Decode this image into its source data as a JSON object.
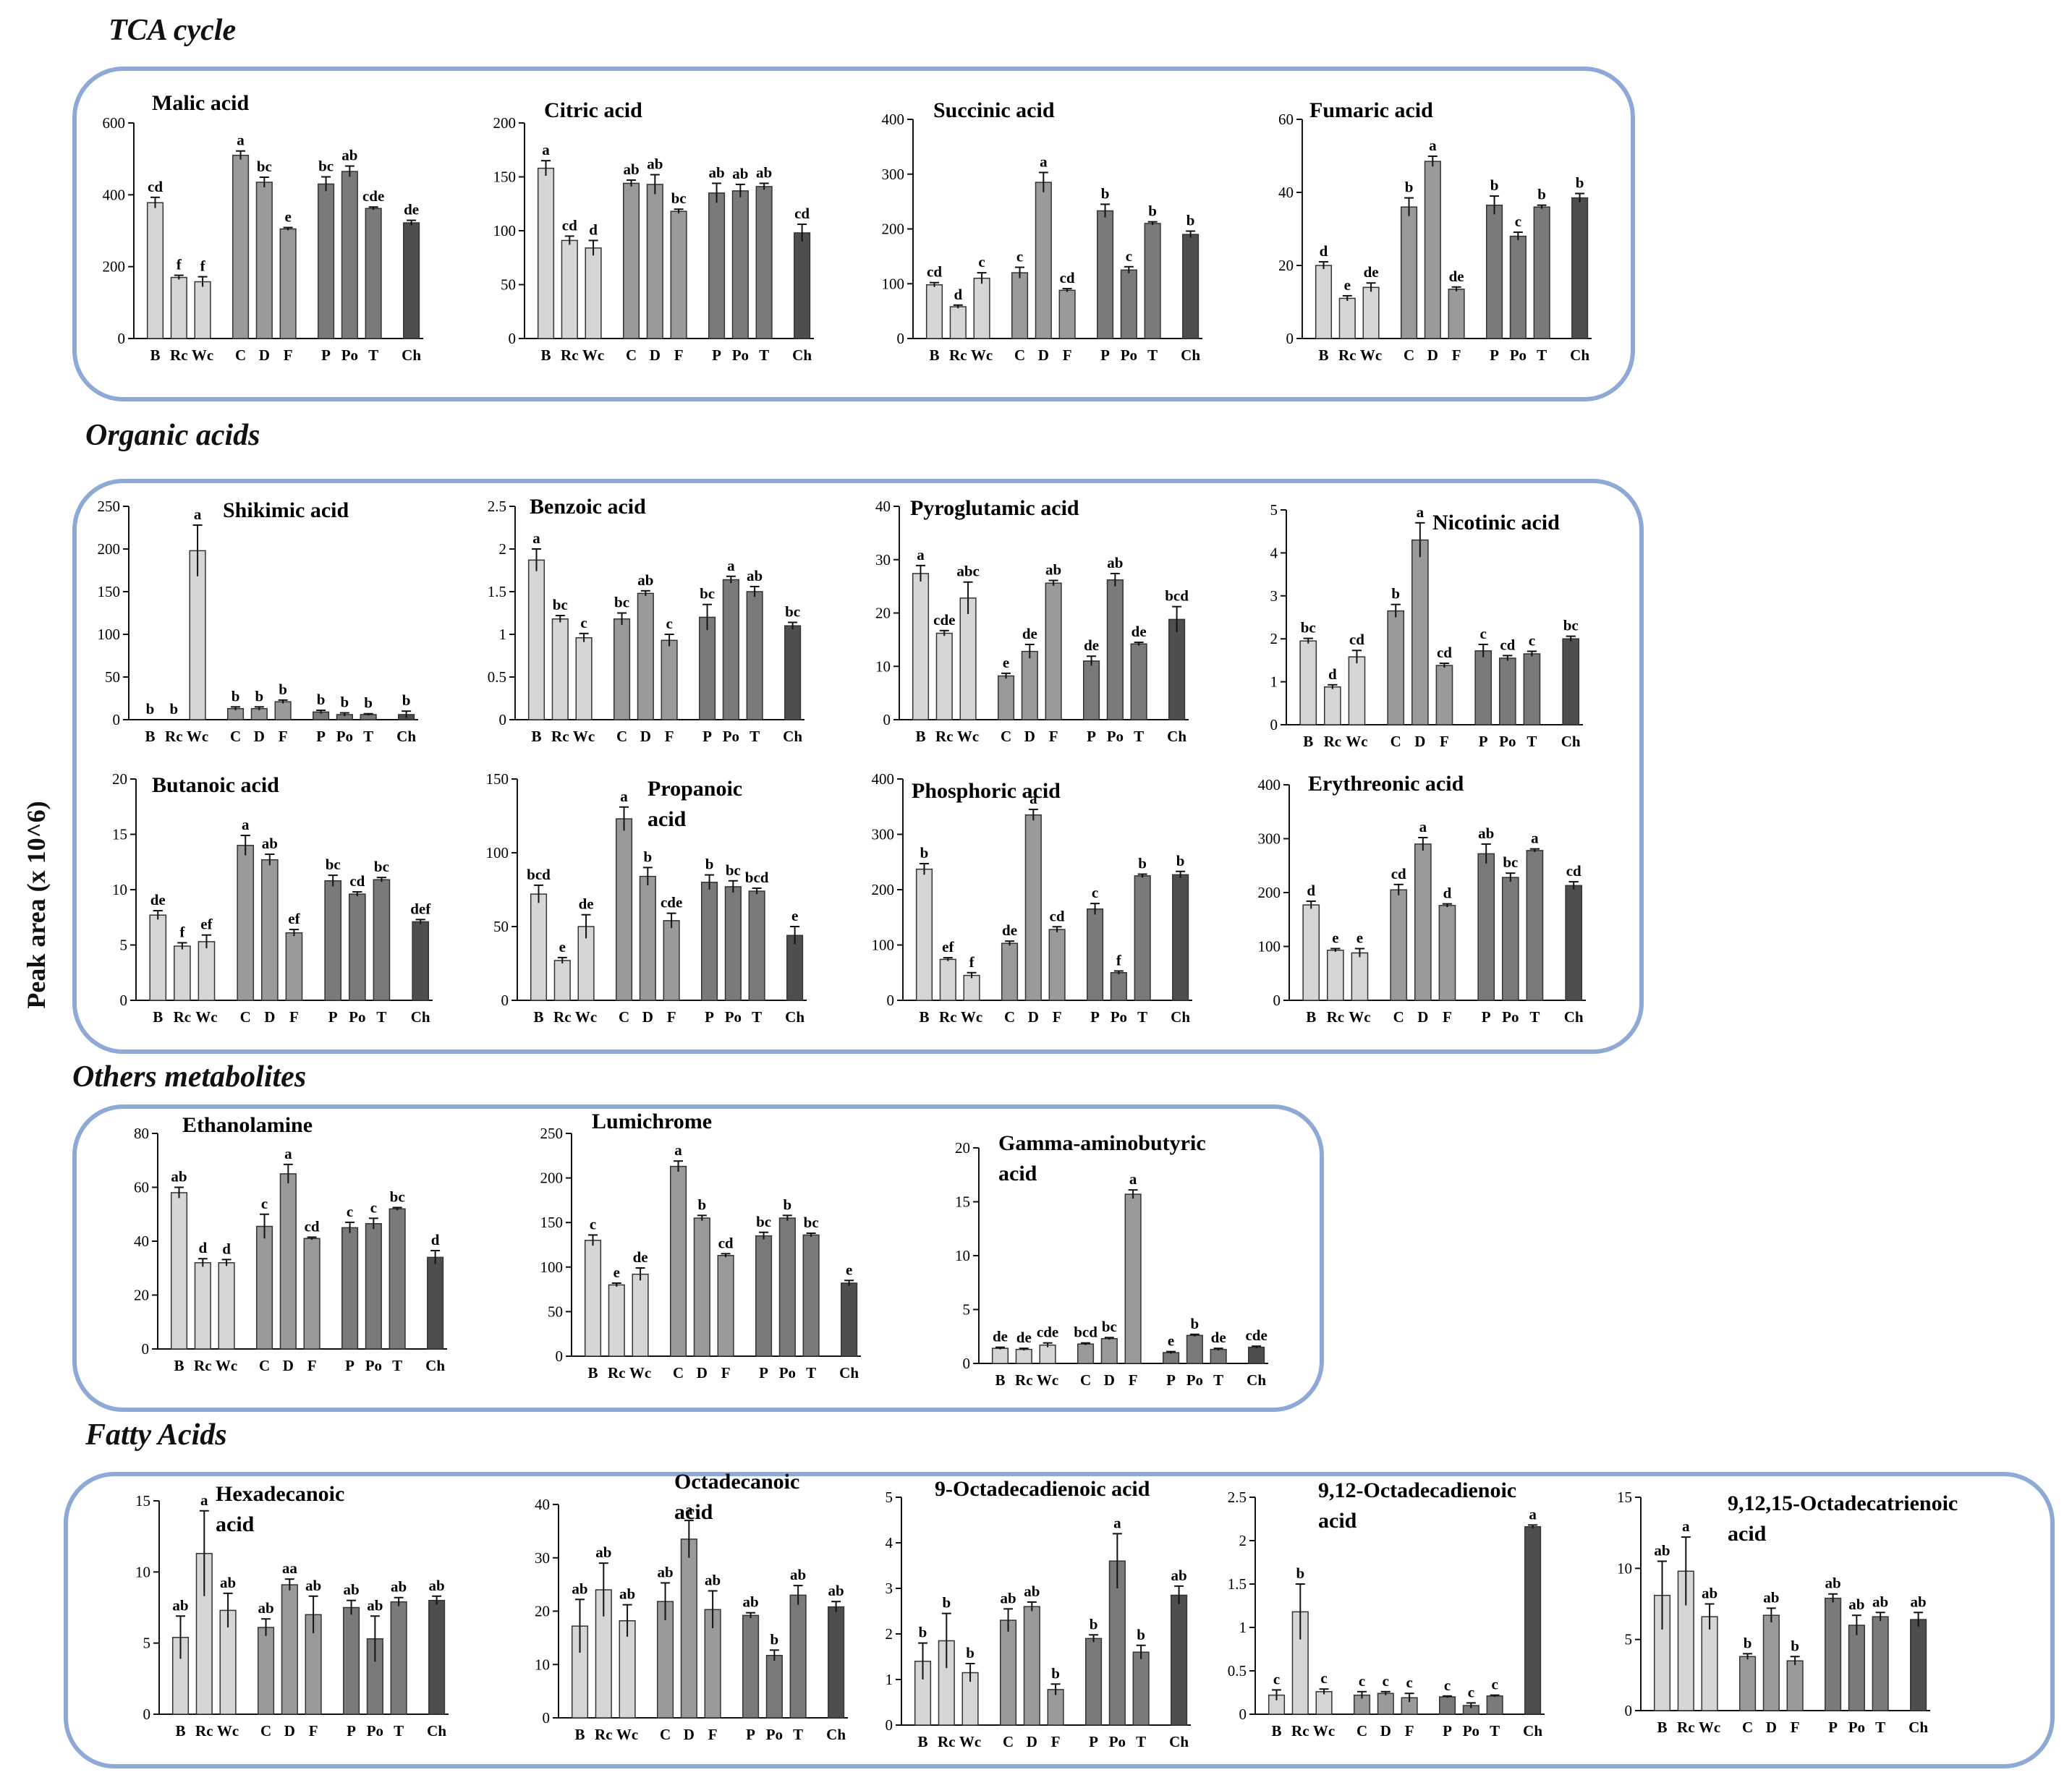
{
  "y_axis_label": "Peak area (x 10^6)",
  "sections": [
    {
      "title": "TCA cycle"
    },
    {
      "title": "Organic acids"
    },
    {
      "title": "Others metabolites"
    },
    {
      "title": "Fatty Acids"
    }
  ],
  "colors": {
    "box_border": "#8ea9d6",
    "light": "#d6d6d6",
    "mid": "#9a9a9a",
    "dark": "#7a7a7a",
    "darkest": "#4e4e4e"
  },
  "chart_data": [
    {
      "section": 0,
      "type": "bar",
      "title": [
        "Malic acid"
      ],
      "ylim": [
        0,
        600
      ],
      "yticks": [
        0,
        200,
        400,
        600
      ],
      "categories": [
        "B",
        "Rc",
        "Wc",
        "C",
        "D",
        "F",
        "P",
        "Po",
        "T",
        "Ch"
      ],
      "values": [
        378,
        170,
        158,
        510,
        435,
        305,
        430,
        465,
        362,
        322
      ],
      "errors": [
        15,
        6,
        14,
        12,
        14,
        4,
        20,
        15,
        4,
        7
      ],
      "letters": [
        "cd",
        "f",
        "f",
        "a",
        "bc",
        "e",
        "bc",
        "ab",
        "cde",
        "de"
      ]
    },
    {
      "section": 0,
      "type": "bar",
      "title": [
        "Citric acid"
      ],
      "ylim": [
        0,
        200
      ],
      "yticks": [
        0,
        50,
        100,
        150,
        200
      ],
      "categories": [
        "B",
        "Rc",
        "Wc",
        "C",
        "D",
        "F",
        "P",
        "Po",
        "T",
        "Ch"
      ],
      "values": [
        158,
        91,
        84,
        144,
        143,
        118,
        135,
        137,
        141,
        98
      ],
      "errors": [
        7,
        4,
        7,
        3,
        9,
        2,
        9,
        6,
        3,
        8
      ],
      "letters": [
        "a",
        "cd",
        "d",
        "ab",
        "ab",
        "bc",
        "ab",
        "ab",
        "ab",
        "cd"
      ]
    },
    {
      "section": 0,
      "type": "bar",
      "title": [
        "Succinic acid"
      ],
      "ylim": [
        0,
        400
      ],
      "yticks": [
        0,
        100,
        200,
        300,
        400
      ],
      "categories": [
        "B",
        "Rc",
        "Wc",
        "C",
        "D",
        "F",
        "P",
        "Po",
        "T",
        "Ch"
      ],
      "values": [
        98,
        58,
        110,
        120,
        285,
        88,
        233,
        125,
        210,
        190
      ],
      "errors": [
        4,
        3,
        10,
        10,
        18,
        3,
        12,
        6,
        3,
        6
      ],
      "letters": [
        "cd",
        "d",
        "c",
        "c",
        "a",
        "cd",
        "b",
        "c",
        "b",
        "b"
      ]
    },
    {
      "section": 0,
      "type": "bar",
      "title": [
        "Fumaric acid"
      ],
      "ylim": [
        0,
        60
      ],
      "yticks": [
        0,
        20,
        40,
        60
      ],
      "categories": [
        "B",
        "Rc",
        "Wc",
        "C",
        "D",
        "F",
        "P",
        "Po",
        "T",
        "Ch"
      ],
      "values": [
        20,
        11,
        14,
        36,
        48.5,
        13.5,
        36.5,
        28,
        36,
        38.5
      ],
      "errors": [
        1,
        0.7,
        1.2,
        2.5,
        1.4,
        0.6,
        2.5,
        1.1,
        0.5,
        1.2
      ],
      "letters": [
        "d",
        "e",
        "de",
        "b",
        "a",
        "de",
        "b",
        "c",
        "b",
        "b"
      ]
    },
    {
      "section": 1,
      "type": "bar",
      "title": [
        "Shikimic acid"
      ],
      "ylim": [
        0,
        250
      ],
      "yticks": [
        0,
        50,
        100,
        150,
        200,
        250
      ],
      "categories": [
        "B",
        "Rc",
        "Wc",
        "C",
        "D",
        "F",
        "P",
        "Po",
        "T",
        "Ch"
      ],
      "values": [
        0,
        0,
        198,
        13,
        13,
        21,
        9,
        6,
        6,
        6
      ],
      "errors": [
        0,
        0,
        30,
        2,
        2,
        2,
        2,
        2,
        1,
        4
      ],
      "letters": [
        "b",
        "b",
        "a",
        "b",
        "b",
        "b",
        "b",
        "b",
        "b",
        "b"
      ]
    },
    {
      "section": 1,
      "type": "bar",
      "title": [
        "Benzoic acid"
      ],
      "ylim": [
        0,
        2.5
      ],
      "yticks": [
        0,
        0.5,
        1.0,
        1.5,
        2.0,
        2.5
      ],
      "categories": [
        "B",
        "Rc",
        "Wc",
        "C",
        "D",
        "F",
        "P",
        "Po",
        "T",
        "Ch"
      ],
      "values": [
        1.87,
        1.18,
        0.96,
        1.18,
        1.48,
        0.93,
        1.2,
        1.64,
        1.5,
        1.1
      ],
      "errors": [
        0.13,
        0.04,
        0.05,
        0.07,
        0.03,
        0.07,
        0.15,
        0.04,
        0.06,
        0.04
      ],
      "letters": [
        "a",
        "bc",
        "c",
        "bc",
        "ab",
        "c",
        "bc",
        "a",
        "ab",
        "bc"
      ]
    },
    {
      "section": 1,
      "type": "bar",
      "title": [
        "Pyroglutamic acid"
      ],
      "ylim": [
        0,
        40
      ],
      "yticks": [
        0,
        10,
        20,
        30,
        40
      ],
      "categories": [
        "B",
        "Rc",
        "Wc",
        "C",
        "D",
        "F",
        "P",
        "Po",
        "T",
        "Ch"
      ],
      "values": [
        27.4,
        16.2,
        22.8,
        8.2,
        12.8,
        25.6,
        11,
        26.2,
        14.2,
        18.8
      ],
      "errors": [
        1.5,
        0.5,
        3,
        0.5,
        1.3,
        0.5,
        0.9,
        1.2,
        0.3,
        2.4
      ],
      "letters": [
        "a",
        "cde",
        "abc",
        "e",
        "de",
        "ab",
        "de",
        "ab",
        "de",
        "bcd"
      ]
    },
    {
      "section": 1,
      "type": "bar",
      "title": [
        "Nicotinic acid"
      ],
      "ylim": [
        0,
        5
      ],
      "yticks": [
        0,
        1,
        2,
        3,
        4,
        5
      ],
      "categories": [
        "B",
        "Rc",
        "Wc",
        "C",
        "D",
        "F",
        "P",
        "Po",
        "T",
        "Ch"
      ],
      "values": [
        1.95,
        0.88,
        1.58,
        2.65,
        4.3,
        1.38,
        1.72,
        1.55,
        1.65,
        2.0
      ],
      "errors": [
        0.06,
        0.05,
        0.15,
        0.15,
        0.4,
        0.05,
        0.15,
        0.06,
        0.06,
        0.06
      ],
      "letters": [
        "bc",
        "d",
        "cd",
        "b",
        "a",
        "cd",
        "c",
        "cd",
        "c",
        "bc"
      ]
    },
    {
      "section": 1,
      "type": "bar",
      "title": [
        "Butanoic acid"
      ],
      "ylim": [
        0,
        20
      ],
      "yticks": [
        0,
        5,
        10,
        15,
        20
      ],
      "categories": [
        "B",
        "Rc",
        "Wc",
        "C",
        "D",
        "F",
        "P",
        "Po",
        "T",
        "Ch"
      ],
      "values": [
        7.7,
        4.9,
        5.3,
        14.0,
        12.7,
        6.1,
        10.8,
        9.6,
        10.9,
        7.1
      ],
      "errors": [
        0.4,
        0.3,
        0.6,
        0.9,
        0.5,
        0.3,
        0.5,
        0.2,
        0.2,
        0.2
      ],
      "letters": [
        "de",
        "f",
        "ef",
        "a",
        "ab",
        "ef",
        "bc",
        "cd",
        "bc",
        "def"
      ]
    },
    {
      "section": 1,
      "type": "bar",
      "title": [
        "Propanoic",
        "acid"
      ],
      "ylim": [
        0,
        150
      ],
      "yticks": [
        0,
        50,
        100,
        150
      ],
      "categories": [
        "B",
        "Rc",
        "Wc",
        "C",
        "D",
        "F",
        "P",
        "Po",
        "T",
        "Ch"
      ],
      "values": [
        72,
        27,
        50,
        123,
        84,
        54,
        80,
        77,
        74,
        44
      ],
      "errors": [
        6,
        2,
        8,
        8,
        6,
        5,
        5,
        4,
        2,
        6
      ],
      "letters": [
        "bcd",
        "e",
        "de",
        "a",
        "b",
        "cde",
        "b",
        "bc",
        "bcd",
        "e"
      ]
    },
    {
      "section": 1,
      "type": "bar",
      "title": [
        "Phosphoric acid"
      ],
      "ylim": [
        0,
        400
      ],
      "yticks": [
        0,
        100,
        200,
        300,
        400
      ],
      "categories": [
        "B",
        "Rc",
        "Wc",
        "C",
        "D",
        "F",
        "P",
        "Po",
        "T",
        "Ch"
      ],
      "values": [
        237,
        74,
        45,
        103,
        335,
        128,
        165,
        50,
        225,
        227
      ],
      "errors": [
        10,
        3,
        5,
        4,
        10,
        5,
        10,
        3,
        3,
        6
      ],
      "letters": [
        "b",
        "ef",
        "f",
        "de",
        "a",
        "cd",
        "c",
        "f",
        "b",
        "b"
      ]
    },
    {
      "section": 1,
      "type": "bar",
      "title": [
        "Erythreonic  acid"
      ],
      "ylim": [
        0,
        400
      ],
      "yticks": [
        0,
        100,
        200,
        300,
        400
      ],
      "categories": [
        "B",
        "Rc",
        "Wc",
        "C",
        "D",
        "F",
        "P",
        "Po",
        "T",
        "Ch"
      ],
      "values": [
        177,
        93,
        88,
        205,
        290,
        176,
        272,
        228,
        278,
        213
      ],
      "errors": [
        7,
        3,
        8,
        10,
        12,
        3,
        18,
        8,
        3,
        7
      ],
      "letters": [
        "d",
        "e",
        "e",
        "cd",
        "a",
        "d",
        "ab",
        "bc",
        "a",
        "cd"
      ]
    },
    {
      "section": 2,
      "type": "bar",
      "title": [
        "Ethanolamine"
      ],
      "ylim": [
        0,
        80
      ],
      "yticks": [
        0,
        20,
        40,
        60,
        80
      ],
      "categories": [
        "B",
        "Rc",
        "Wc",
        "C",
        "D",
        "F",
        "P",
        "Po",
        "T",
        "Ch"
      ],
      "values": [
        58,
        32,
        32,
        45.5,
        65,
        41,
        45,
        46.5,
        52,
        34
      ],
      "errors": [
        2,
        1.5,
        1.2,
        4.5,
        3.5,
        0.5,
        2,
        2,
        0.5,
        2.5
      ],
      "letters": [
        "ab",
        "d",
        "d",
        "c",
        "a",
        "cd",
        "c",
        "c",
        "bc",
        "d"
      ]
    },
    {
      "section": 2,
      "type": "bar",
      "title": [
        "Lumichrome"
      ],
      "ylim": [
        0,
        250
      ],
      "yticks": [
        0,
        50,
        100,
        150,
        200,
        250
      ],
      "categories": [
        "B",
        "Rc",
        "Wc",
        "C",
        "D",
        "F",
        "P",
        "Po",
        "T",
        "Ch"
      ],
      "values": [
        130,
        80,
        92,
        213,
        155,
        113,
        135,
        155,
        136,
        82
      ],
      "errors": [
        6,
        2,
        7,
        6,
        3,
        2,
        4,
        3,
        2,
        3
      ],
      "letters": [
        "c",
        "e",
        "de",
        "a",
        "b",
        "cd",
        "bc",
        "b",
        "bc",
        "e"
      ]
    },
    {
      "section": 2,
      "type": "bar",
      "title": [
        "Gamma-aminobutyric",
        "acid"
      ],
      "ylim": [
        0,
        20
      ],
      "yticks": [
        0,
        5,
        10,
        15,
        20
      ],
      "categories": [
        "B",
        "Rc",
        "Wc",
        "C",
        "D",
        "F",
        "P",
        "Po",
        "T",
        "Ch"
      ],
      "values": [
        1.4,
        1.3,
        1.7,
        1.8,
        2.3,
        15.7,
        1.0,
        2.6,
        1.3,
        1.5
      ],
      "errors": [
        0.1,
        0.1,
        0.2,
        0.1,
        0.1,
        0.4,
        0.1,
        0.1,
        0.1,
        0.1
      ],
      "letters": [
        "de",
        "de",
        "cde",
        "bcd",
        "bc",
        "a",
        "e",
        "b",
        "de",
        "cde"
      ]
    },
    {
      "section": 3,
      "type": "bar",
      "title": [
        "Hexadecanoic",
        "acid"
      ],
      "ylim": [
        0,
        15
      ],
      "yticks": [
        0,
        5,
        10,
        15
      ],
      "categories": [
        "B",
        "Rc",
        "Wc",
        "C",
        "D",
        "F",
        "P",
        "Po",
        "T",
        "Ch"
      ],
      "values": [
        5.4,
        11.3,
        7.3,
        6.1,
        9.1,
        7.0,
        7.5,
        5.3,
        7.9,
        8.0
      ],
      "errors": [
        1.5,
        3.0,
        1.2,
        0.6,
        0.4,
        1.3,
        0.5,
        1.6,
        0.3,
        0.3
      ],
      "letters": [
        "ab",
        "a",
        "ab",
        "ab",
        "aa",
        "ab",
        "ab",
        "ab",
        "ab",
        "ab"
      ]
    },
    {
      "section": 3,
      "type": "bar",
      "title": [
        "Octadecanoic",
        "acid"
      ],
      "ylim": [
        0,
        40
      ],
      "yticks": [
        0,
        10,
        20,
        30,
        40
      ],
      "categories": [
        "B",
        "Rc",
        "Wc",
        "C",
        "D",
        "F",
        "P",
        "Po",
        "T",
        "Ch"
      ],
      "values": [
        17.2,
        24.0,
        18.2,
        21.8,
        33.5,
        20.3,
        19.2,
        11.7,
        23.0,
        20.8
      ],
      "errors": [
        5,
        5,
        3,
        3.5,
        3.5,
        3.5,
        0.5,
        1,
        1.8,
        1
      ],
      "letters": [
        "ab",
        "ab",
        "ab",
        "ab",
        "a",
        "ab",
        "ab",
        "b",
        "ab",
        "ab"
      ]
    },
    {
      "section": 3,
      "type": "bar",
      "title": [
        "9-Octadecadienoic acid"
      ],
      "ylim": [
        0,
        5
      ],
      "yticks": [
        0,
        1,
        2,
        3,
        4,
        5
      ],
      "categories": [
        "B",
        "Rc",
        "Wc",
        "C",
        "D",
        "F",
        "P",
        "Po",
        "T",
        "Ch"
      ],
      "values": [
        1.4,
        1.85,
        1.15,
        2.3,
        2.6,
        0.78,
        1.9,
        3.6,
        1.6,
        2.85
      ],
      "errors": [
        0.4,
        0.6,
        0.2,
        0.25,
        0.1,
        0.12,
        0.08,
        0.6,
        0.15,
        0.2
      ],
      "letters": [
        "b",
        "b",
        "b",
        "ab",
        "ab",
        "b",
        "b",
        "a",
        "b",
        "ab"
      ]
    },
    {
      "section": 3,
      "type": "bar",
      "title": [
        "9,12-Octadecadienoic",
        "acid"
      ],
      "ylim": [
        0,
        2.5
      ],
      "yticks": [
        0,
        0.5,
        1.0,
        1.5,
        2.0,
        2.5
      ],
      "categories": [
        "B",
        "Rc",
        "Wc",
        "C",
        "D",
        "F",
        "P",
        "Po",
        "T",
        "Ch"
      ],
      "values": [
        0.22,
        1.18,
        0.26,
        0.22,
        0.24,
        0.19,
        0.2,
        0.1,
        0.21,
        2.16
      ],
      "errors": [
        0.06,
        0.32,
        0.03,
        0.04,
        0.02,
        0.05,
        0.01,
        0.03,
        0.01,
        0.02
      ],
      "letters": [
        "c",
        "b",
        "c",
        "c",
        "c",
        "c",
        "c",
        "c",
        "c",
        "a"
      ]
    },
    {
      "section": 3,
      "type": "bar",
      "title": [
        "9,12,15-Octadecatrienoic",
        "acid"
      ],
      "ylim": [
        0,
        15
      ],
      "yticks": [
        0,
        5,
        10,
        15
      ],
      "categories": [
        "B",
        "Rc",
        "Wc",
        "C",
        "D",
        "F",
        "P",
        "Po",
        "T",
        "Ch"
      ],
      "values": [
        8.1,
        9.8,
        6.6,
        3.8,
        6.7,
        3.5,
        7.9,
        6.0,
        6.6,
        6.4
      ],
      "errors": [
        2.4,
        2.4,
        0.9,
        0.2,
        0.5,
        0.3,
        0.3,
        0.7,
        0.3,
        0.5
      ],
      "letters": [
        "ab",
        "a",
        "ab",
        "b",
        "ab",
        "b",
        "ab",
        "ab",
        "ab",
        "ab"
      ]
    }
  ]
}
